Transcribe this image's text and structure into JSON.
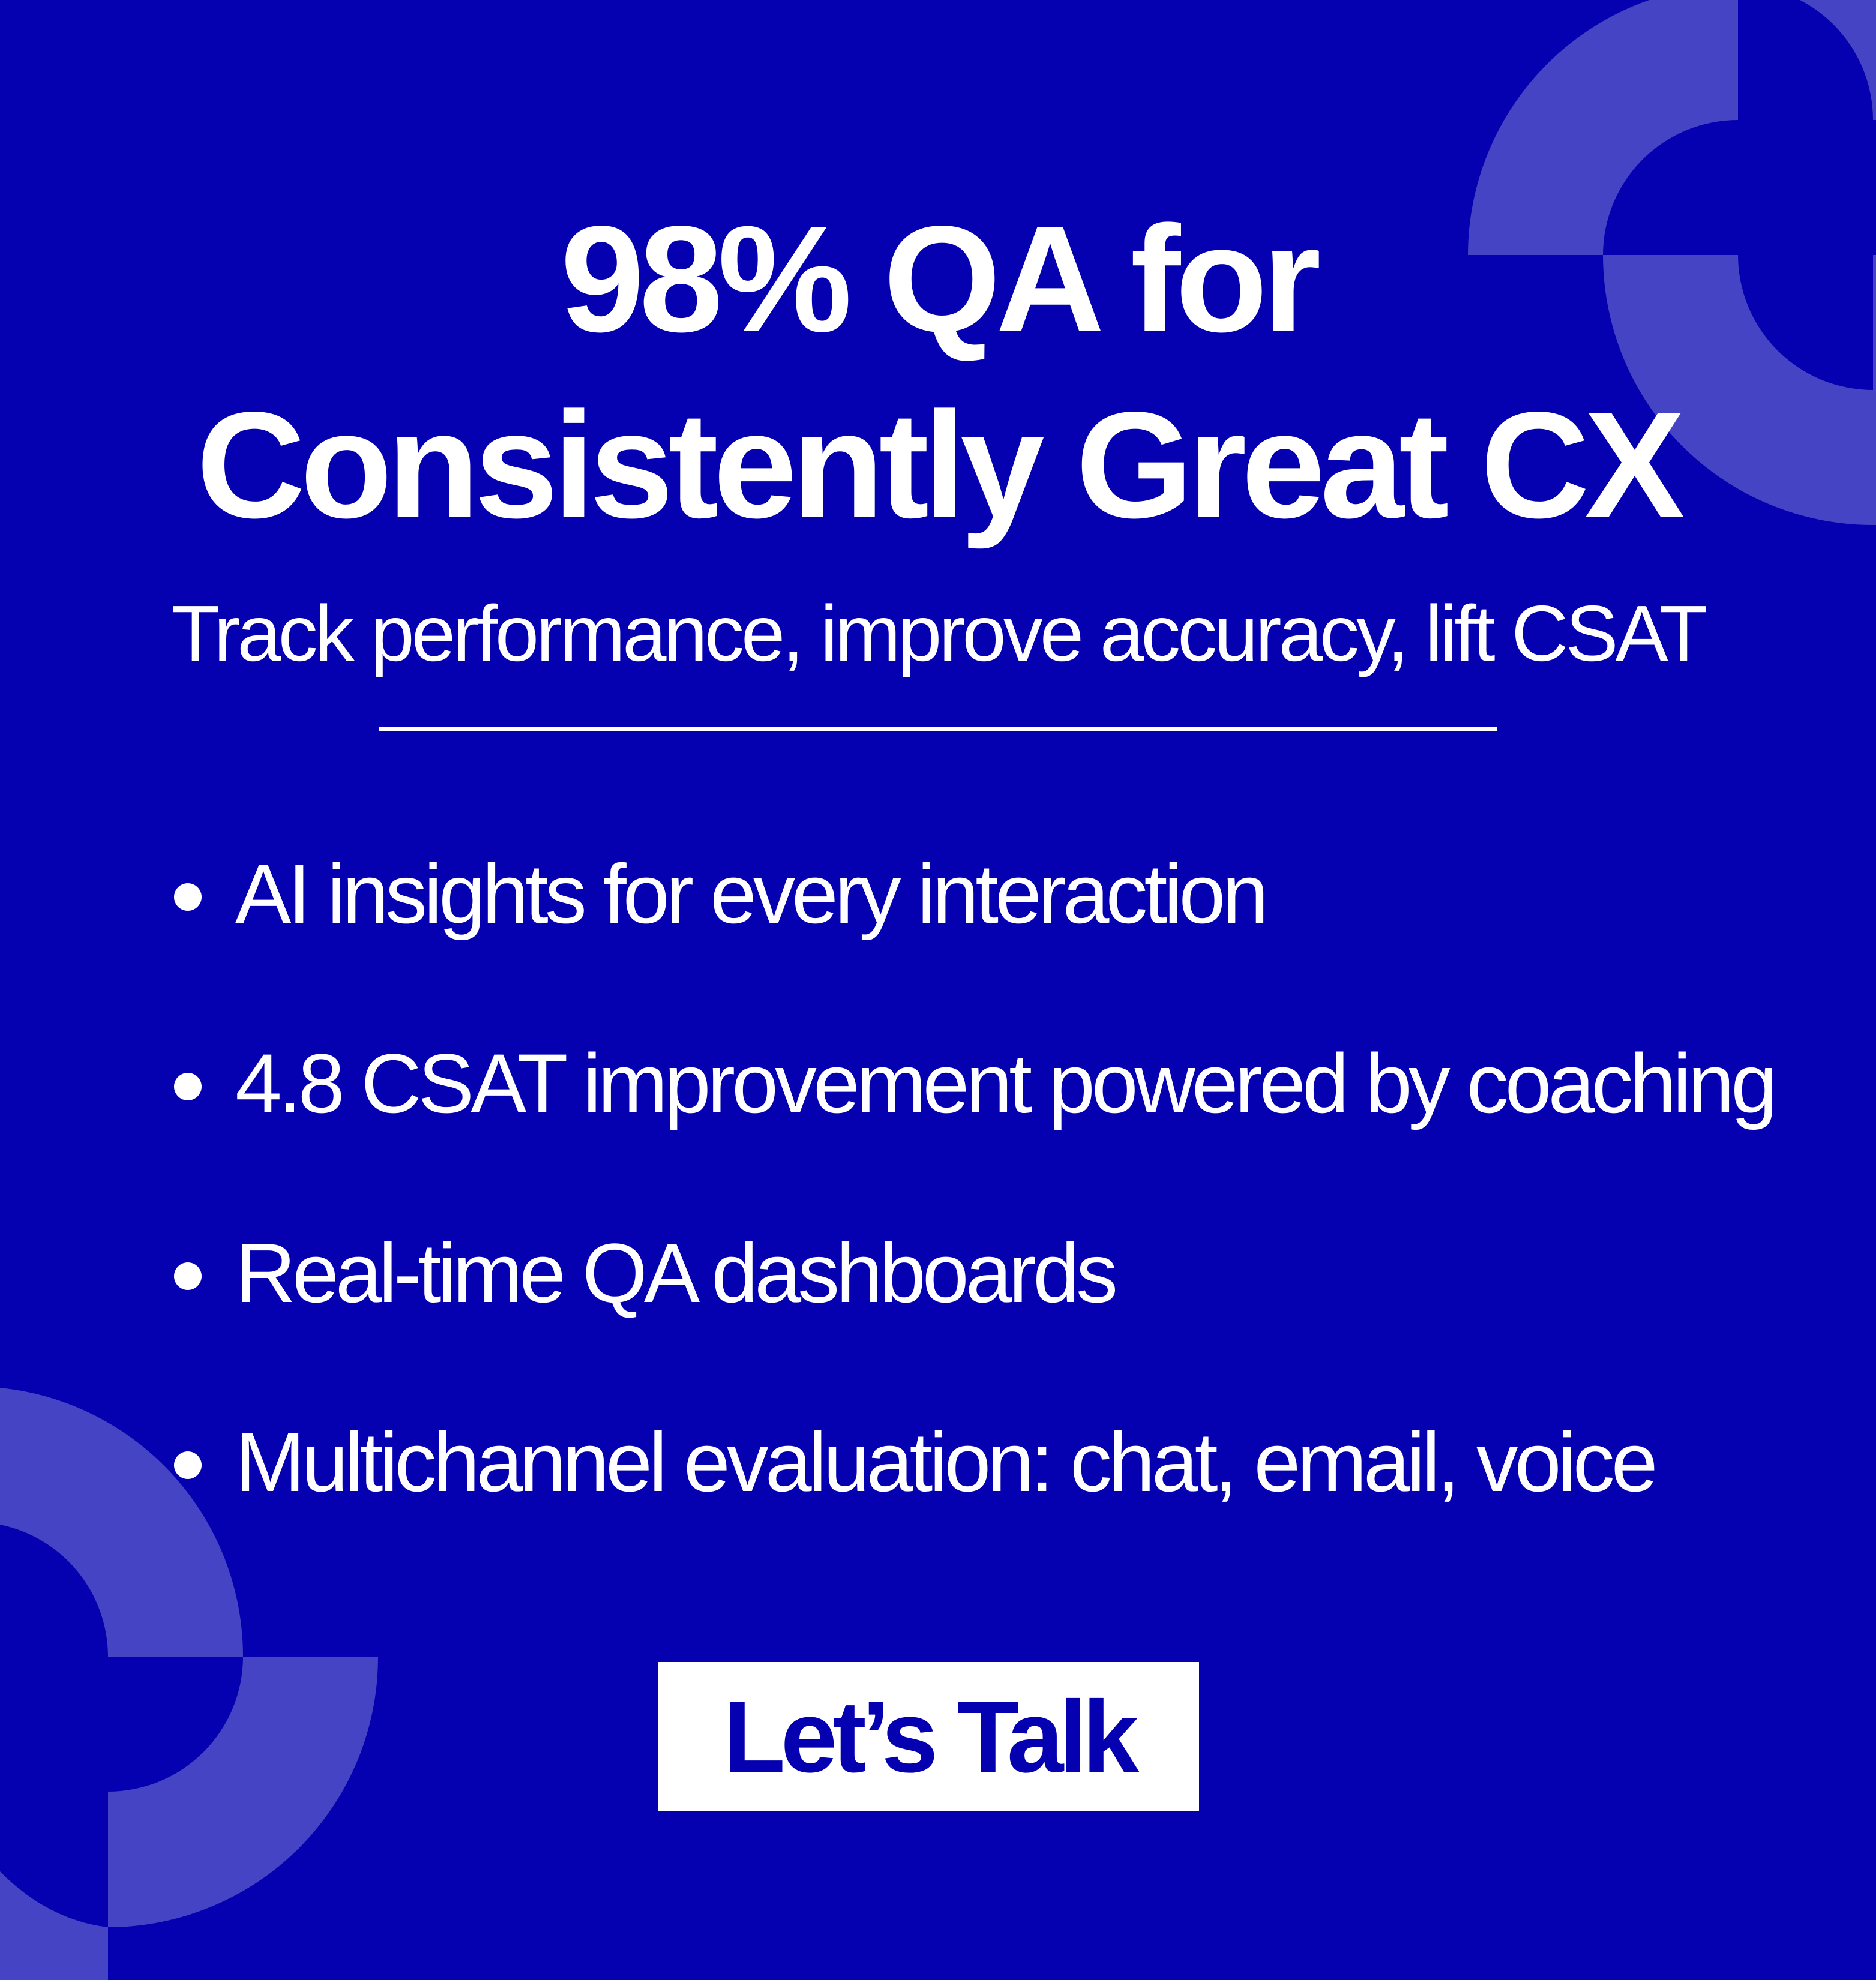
{
  "colors": {
    "background": "#0500b0",
    "accent_shape": "#4444c4",
    "text": "#ffffff",
    "button_bg": "#ffffff",
    "button_text": "#0500b0"
  },
  "header": {
    "title_line1": "98% QA for",
    "title_line2": "Consistently Great CX",
    "subtitle": "Track performance, improve accuracy, lift CSAT"
  },
  "bullets": [
    {
      "text": "AI insights for every interaction"
    },
    {
      "text": "4.8 CSAT improvement powered by coaching"
    },
    {
      "text": "Real-time QA dashboards"
    },
    {
      "text": "Multichannel evaluation: chat, email, voice"
    }
  ],
  "cta": {
    "label": "Let’s Talk"
  }
}
